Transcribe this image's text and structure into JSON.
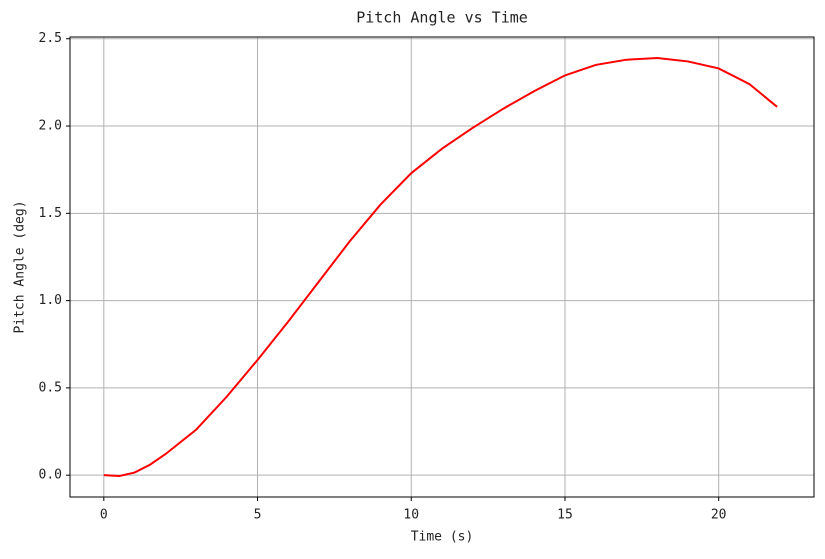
{
  "chart_data": {
    "type": "line",
    "title": "Pitch Angle vs Time",
    "xlabel": "Time (s)",
    "ylabel": "Pitch Angle (deg)",
    "x": [
      0,
      0.5,
      1,
      1.5,
      2,
      3,
      4,
      5,
      6,
      7,
      8,
      9,
      10,
      11,
      12,
      13,
      14,
      15,
      16,
      17,
      18,
      19,
      20,
      21,
      21.9
    ],
    "series": [
      {
        "name": "Pitch Angle",
        "color": "#ff0000",
        "values": [
          0,
          -0.005,
          0.015,
          0.06,
          0.12,
          0.26,
          0.45,
          0.66,
          0.88,
          1.11,
          1.34,
          1.55,
          1.73,
          1.87,
          1.99,
          2.1,
          2.2,
          2.29,
          2.35,
          2.38,
          2.39,
          2.37,
          2.33,
          2.24,
          2.11
        ]
      }
    ],
    "xlim": [
      -1.1,
      23.1
    ],
    "ylim": [
      -0.125,
      2.51
    ],
    "xticks": [
      0,
      5,
      10,
      15,
      20
    ],
    "yticks": [
      {
        "value": 0,
        "label": "0.0"
      },
      0.5,
      {
        "value": 1,
        "label": "1.0"
      },
      1.5,
      {
        "value": 2,
        "label": "2.0"
      },
      2.5
    ],
    "grid": true
  }
}
